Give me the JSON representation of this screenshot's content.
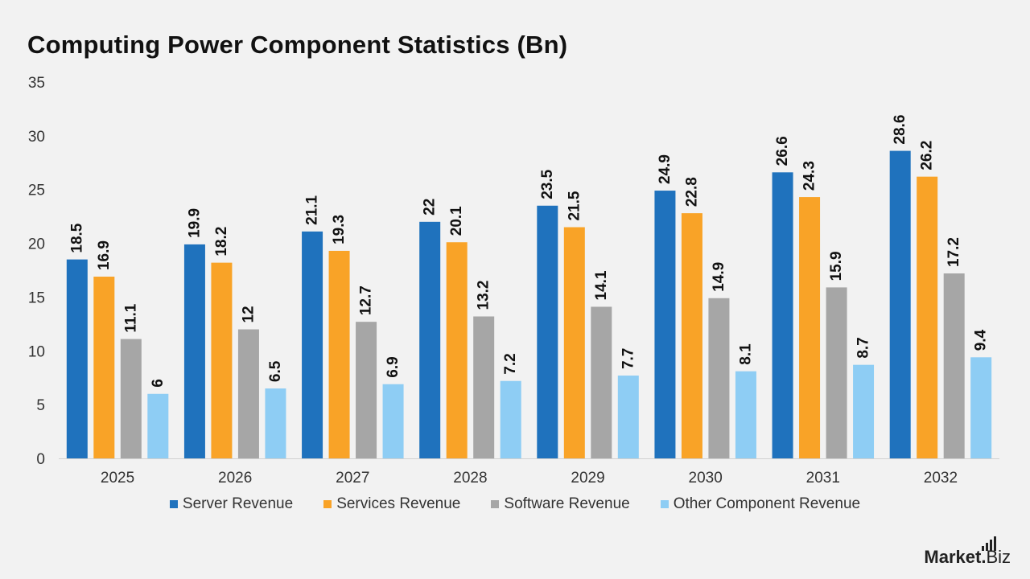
{
  "title": "Computing Power Component Statistics (Bn)",
  "logo": {
    "bold": "Market",
    "dot": ".",
    "rest": "Biz"
  },
  "chart_data": {
    "type": "bar",
    "title": "Computing Power Component Statistics (Bn)",
    "categories": [
      "2025",
      "2026",
      "2027",
      "2028",
      "2029",
      "2030",
      "2031",
      "2032"
    ],
    "series": [
      {
        "name": "Server Revenue",
        "color": "#1f72bd",
        "values": [
          18.5,
          19.9,
          21.1,
          22,
          23.5,
          24.9,
          26.6,
          28.6
        ]
      },
      {
        "name": "Services Revenue",
        "color": "#f9a327",
        "values": [
          16.9,
          18.2,
          19.3,
          20.1,
          21.5,
          22.8,
          24.3,
          26.2
        ]
      },
      {
        "name": "Software Revenue",
        "color": "#a6a6a6",
        "values": [
          11.1,
          12,
          12.7,
          13.2,
          14.1,
          14.9,
          15.9,
          17.2
        ]
      },
      {
        "name": "Other Component Revenue",
        "color": "#8ecdf4",
        "values": [
          6,
          6.5,
          6.9,
          7.2,
          7.7,
          8.1,
          8.7,
          9.4
        ]
      }
    ],
    "ylim": [
      0,
      35
    ],
    "yticks": [
      0,
      5,
      10,
      15,
      20,
      25,
      30,
      35
    ],
    "xlabel": "",
    "ylabel": "",
    "grid": false,
    "legend": "bottom-center",
    "data_labels": true
  }
}
